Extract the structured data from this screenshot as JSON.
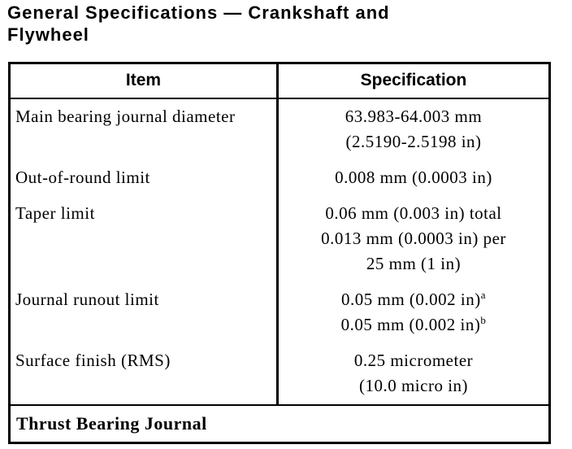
{
  "title": {
    "line1": "General Specifications — Crankshaft and",
    "line2": "Flywheel"
  },
  "table": {
    "header": {
      "item": "Item",
      "spec": "Specification"
    },
    "rows": [
      {
        "item_lines": [
          "Main bearing journal diameter"
        ],
        "spec_lines": [
          "63.983-64.003 mm",
          "(2.5190-2.5198 in)"
        ]
      },
      {
        "item_lines": [
          "Out-of-round limit"
        ],
        "spec_lines": [
          "0.008 mm (0.0003 in)"
        ]
      },
      {
        "item_lines": [
          "Taper limit"
        ],
        "spec_lines": [
          "0.06 mm (0.003 in) total",
          "0.013 mm (0.0003 in) per",
          "25 mm (1 in)"
        ]
      },
      {
        "item_lines": [
          "Journal runout limit"
        ],
        "spec_lines": [
          "0.05 mm (0.002 in)",
          "0.05 mm (0.002 in)"
        ],
        "spec_sups": [
          "a",
          "b"
        ]
      },
      {
        "item_lines": [
          "Surface finish (RMS)"
        ],
        "spec_lines": [
          "0.25 micrometer",
          "(10.0 micro in)"
        ]
      }
    ],
    "footer": "Thrust Bearing Journal"
  }
}
